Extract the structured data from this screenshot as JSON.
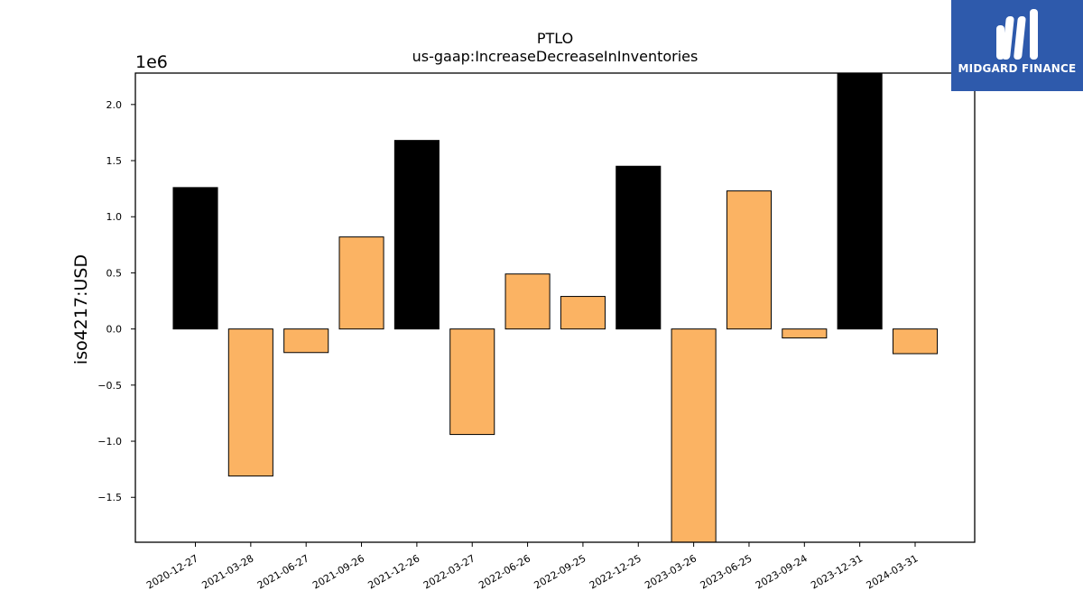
{
  "chart_data": {
    "type": "bar",
    "title": "PTLO",
    "subtitle": "us-gaap:IncreaseDecreaseInInventories",
    "ylabel": "iso4217:USD",
    "xlabel": "",
    "scale_label": "1e6",
    "ylim": [
      -1.9,
      2.28
    ],
    "yticks": [
      -1.5,
      -1.0,
      -0.5,
      0.0,
      0.5,
      1.0,
      1.5,
      2.0
    ],
    "ytick_labels": [
      "−1.5",
      "−1.0",
      "−0.5",
      "0.0",
      "0.5",
      "1.0",
      "1.5",
      "2.0"
    ],
    "grid": false,
    "categories": [
      "2020-12-27",
      "2021-03-28",
      "2021-06-27",
      "2021-09-26",
      "2021-12-26",
      "2022-03-27",
      "2022-06-26",
      "2022-09-25",
      "2022-12-25",
      "2023-03-26",
      "2023-06-25",
      "2023-09-24",
      "2023-12-31",
      "2024-03-31"
    ],
    "values": [
      1.26,
      -1.31,
      -0.21,
      0.82,
      1.68,
      -0.94,
      0.49,
      0.29,
      1.45,
      -1.9,
      1.23,
      -0.08,
      2.28,
      -0.22
    ],
    "bar_colors": [
      "#000000",
      "#fbb363",
      "#fbb363",
      "#fbb363",
      "#000000",
      "#fbb363",
      "#fbb363",
      "#fbb363",
      "#000000",
      "#fbb363",
      "#fbb363",
      "#fbb363",
      "#000000",
      "#fbb363"
    ]
  },
  "logo": {
    "text": "MIDGARD FINANCE",
    "icon": "midgard-logo-icon",
    "background": "#2e5aac"
  }
}
